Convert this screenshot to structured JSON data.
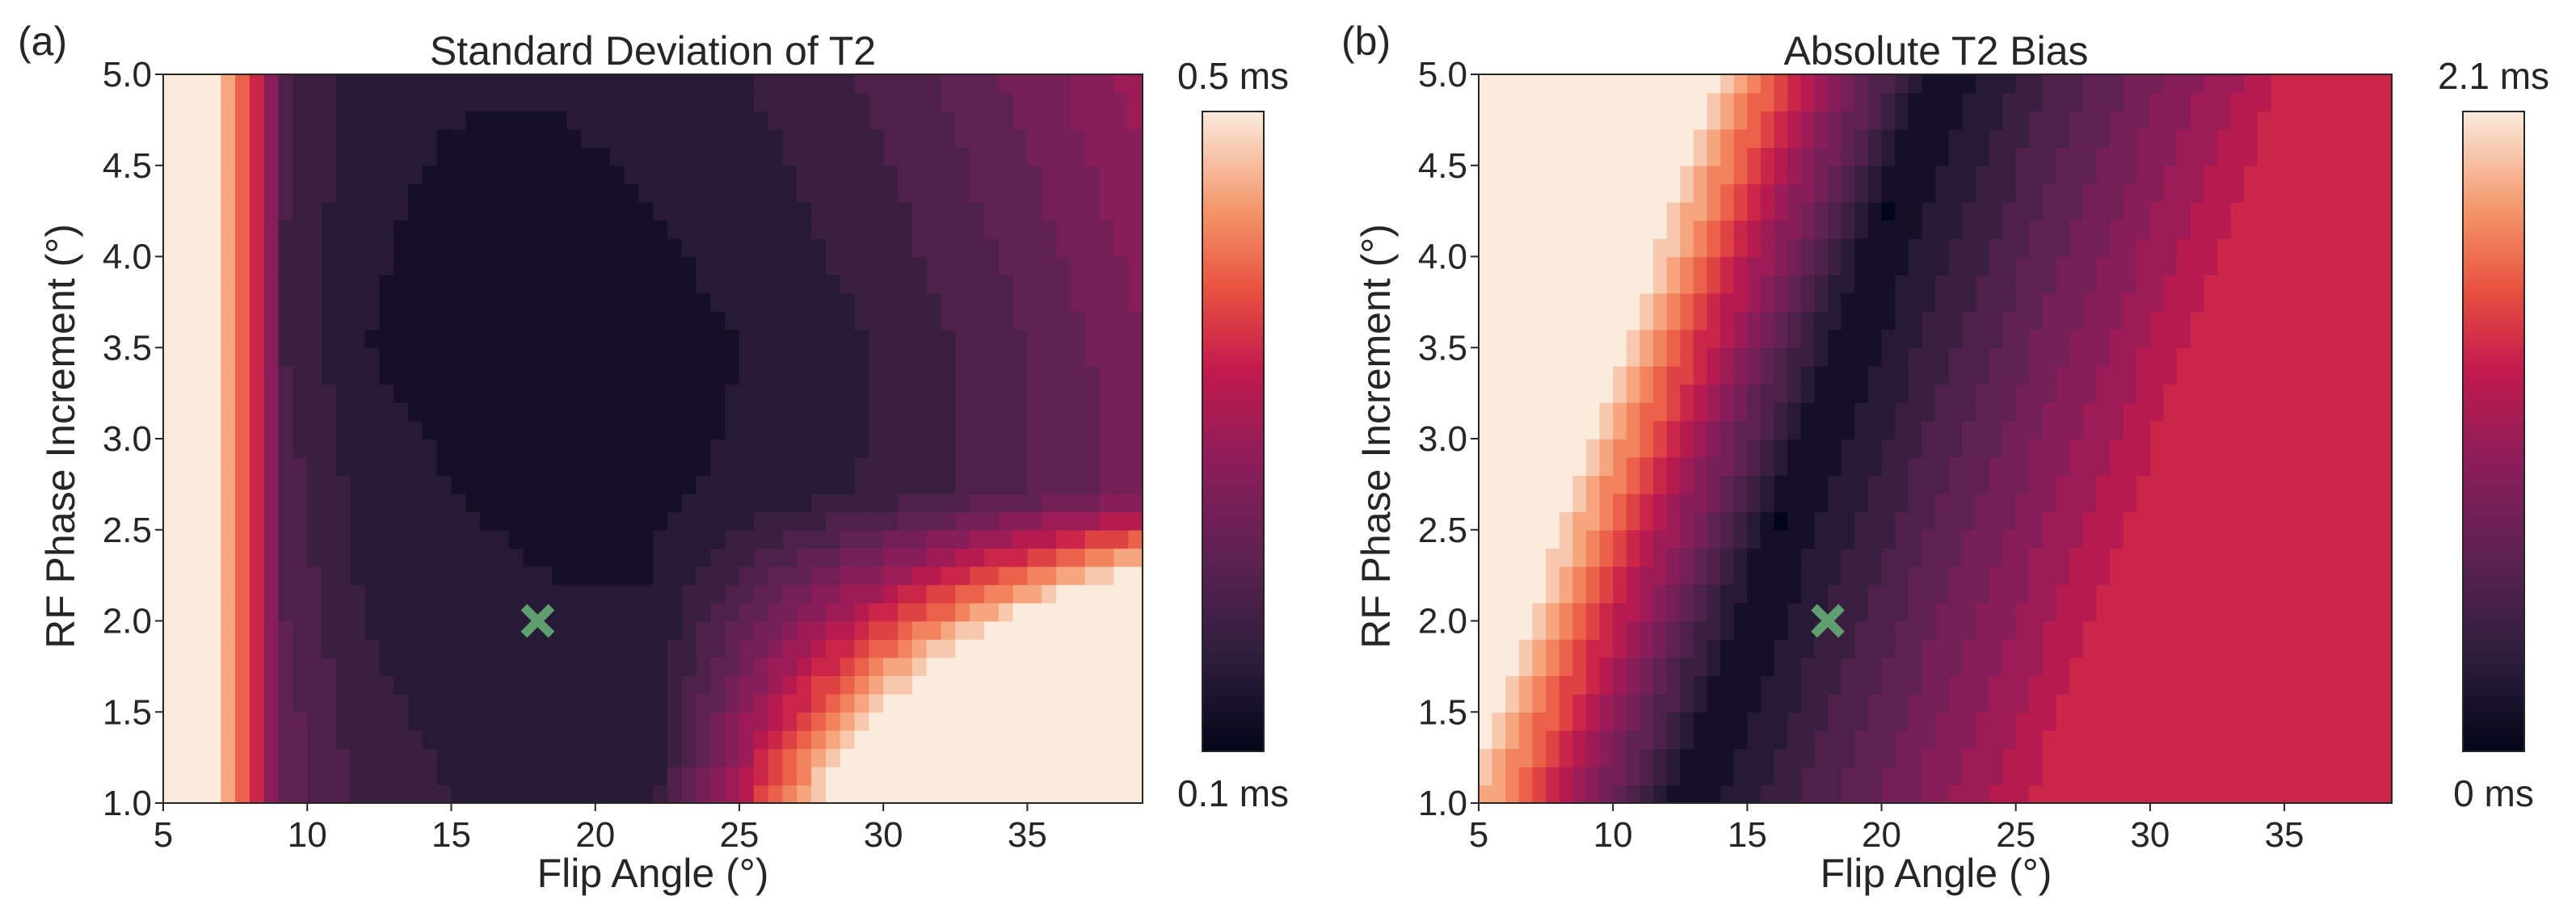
{
  "chart_data": [
    {
      "type": "heatmap",
      "panel_label": "(a)",
      "title": "Standard Deviation of T2",
      "xlabel": "Flip Angle (°)",
      "ylabel": "RF Phase Increment (°)",
      "xlim": [
        5,
        39
      ],
      "ylim": [
        1.0,
        5.0
      ],
      "xticks": [
        "5",
        "10",
        "15",
        "20",
        "25",
        "30",
        "35"
      ],
      "yticks": [
        "1.0",
        "1.5",
        "2.0",
        "2.5",
        "3.0",
        "3.5",
        "4.0",
        "4.5",
        "5.0"
      ],
      "colorbar": {
        "min_label": "0.1 ms",
        "max_label": "0.5 ms",
        "min": 0.1,
        "max": 0.5,
        "unit": "ms"
      },
      "marker": {
        "x": 18,
        "y": 2.0,
        "symbol": "x",
        "color": "#5f9e6e"
      },
      "colormap": "rocket"
    },
    {
      "type": "heatmap",
      "panel_label": "(b)",
      "title": "Absolute T2 Bias",
      "xlabel": "Flip Angle (°)",
      "ylabel": "RF Phase Increment (°)",
      "xlim": [
        5,
        39
      ],
      "ylim": [
        1.0,
        5.0
      ],
      "xticks": [
        "5",
        "10",
        "15",
        "20",
        "25",
        "30",
        "35"
      ],
      "yticks": [
        "1.0",
        "1.5",
        "2.0",
        "2.5",
        "3.0",
        "3.5",
        "4.0",
        "4.5",
        "5.0"
      ],
      "colorbar": {
        "min_label": "0 ms",
        "max_label": "2.1 ms",
        "min": 0.0,
        "max": 2.1,
        "unit": "ms"
      },
      "marker": {
        "x": 18,
        "y": 2.0,
        "symbol": "x",
        "color": "#5f9e6e"
      },
      "colormap": "rocket"
    }
  ]
}
